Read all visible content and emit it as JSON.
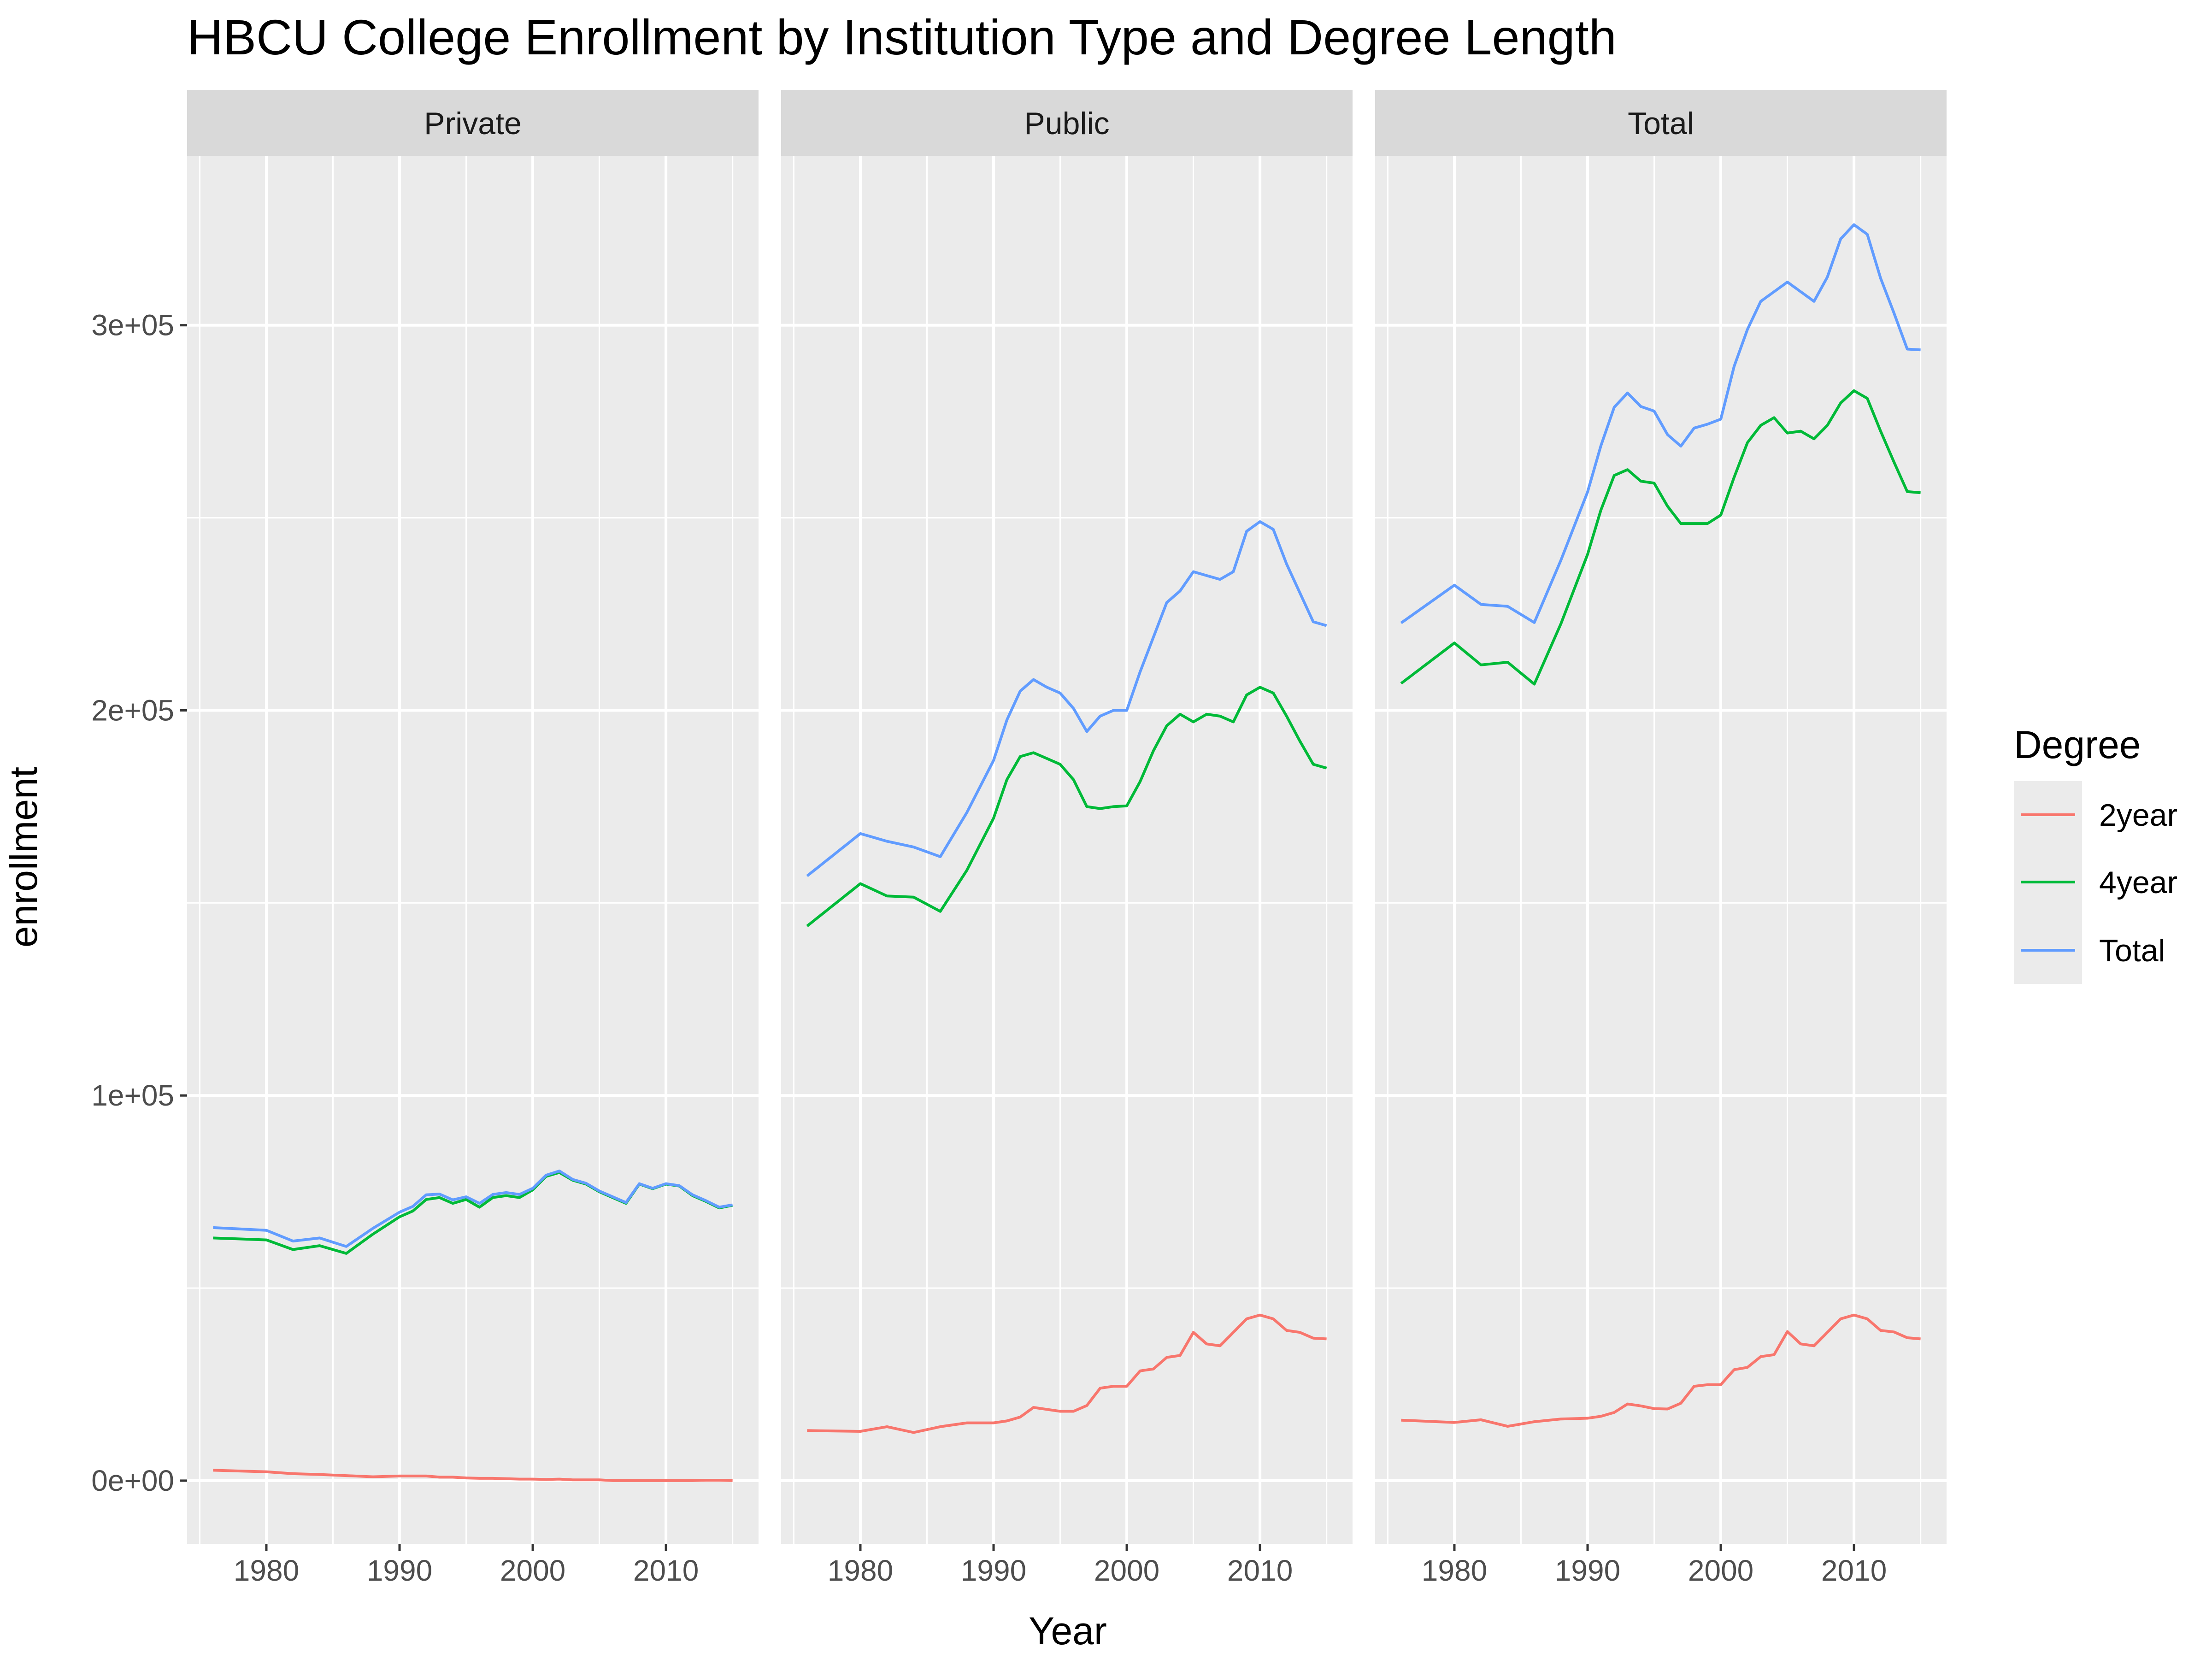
{
  "chart_data": {
    "type": "line",
    "title": "HBCU College Enrollment by Institution Type and Degree Length",
    "xlabel": "Year",
    "ylabel": "enrollment",
    "xlim": [
      1974.05,
      2016.95
    ],
    "ylim": [
      -16400,
      344000
    ],
    "x_ticks": [
      1980,
      1990,
      2000,
      2010
    ],
    "x_tick_labels": [
      "1980",
      "1990",
      "2000",
      "2010"
    ],
    "y_ticks": [
      0,
      100000,
      200000,
      300000
    ],
    "y_tick_labels": [
      "0e+00",
      "1e+05",
      "2e+05",
      "3e+05"
    ],
    "y_minor_ticks": [
      50000,
      150000,
      250000
    ],
    "x_minor_ticks": [
      1975,
      1985,
      1995,
      2005,
      2015
    ],
    "grid": true,
    "legend": {
      "title": "Degree",
      "position": "right",
      "entries": [
        {
          "name": "2year",
          "color": "#F8766D"
        },
        {
          "name": "4year",
          "color": "#00BA38"
        },
        {
          "name": "Total",
          "color": "#619CFF"
        }
      ]
    },
    "facets": [
      {
        "label": "Private",
        "series": [
          {
            "name": "2year",
            "color": "#F8766D",
            "x": [
              1976,
              1980,
              1982,
              1984,
              1986,
              1988,
              1990,
              1991,
              1992,
              1993,
              1994,
              1995,
              1996,
              1997,
              1998,
              1999,
              2000,
              2001,
              2002,
              2003,
              2004,
              2005,
              2006,
              2007,
              2008,
              2009,
              2010,
              2011,
              2012,
              2013,
              2014,
              2015
            ],
            "y": [
              2700,
              2300,
              1800,
              1600,
              1300,
              1000,
              1200,
              1200,
              1200,
              900,
              900,
              700,
              600,
              600,
              500,
              400,
              400,
              300,
              400,
              200,
              200,
              200,
              0,
              0,
              0,
              0,
              0,
              0,
              0,
              100,
              100,
              0
            ]
          },
          {
            "name": "4year",
            "color": "#00BA38",
            "x": [
              1976,
              1980,
              1982,
              1984,
              1986,
              1988,
              1990,
              1991,
              1992,
              1993,
              1994,
              1995,
              1996,
              1997,
              1998,
              1999,
              2000,
              2001,
              2002,
              2003,
              2004,
              2005,
              2006,
              2007,
              2008,
              2009,
              2010,
              2011,
              2012,
              2013,
              2014,
              2015
            ],
            "y": [
              63000,
              62500,
              60000,
              61000,
              59000,
              64000,
              68500,
              70000,
              73000,
              73500,
              72000,
              73000,
              71000,
              73500,
              74000,
              73500,
              75500,
              79000,
              80000,
              78000,
              77000,
              75000,
              73500,
              72000,
              77000,
              75800,
              77000,
              76500,
              74000,
              72500,
              70800,
              71500
            ]
          },
          {
            "name": "Total",
            "color": "#619CFF",
            "x": [
              1976,
              1980,
              1982,
              1984,
              1986,
              1988,
              1990,
              1991,
              1992,
              1993,
              1994,
              1995,
              1996,
              1997,
              1998,
              1999,
              2000,
              2001,
              2002,
              2003,
              2004,
              2005,
              2006,
              2007,
              2008,
              2009,
              2010,
              2011,
              2012,
              2013,
              2014,
              2015
            ],
            "y": [
              65700,
              65000,
              62200,
              63000,
              60800,
              65500,
              69700,
              71200,
              74200,
              74400,
              72900,
              73700,
              72000,
              74300,
              74800,
              74300,
              75900,
              79300,
              80400,
              78200,
              77200,
              75200,
              73700,
              72200,
              77100,
              75900,
              77100,
              76600,
              74200,
              72700,
              71000,
              71600
            ]
          }
        ]
      },
      {
        "label": "Public",
        "series": [
          {
            "name": "2year",
            "color": "#F8766D",
            "x": [
              1976,
              1980,
              1982,
              1984,
              1986,
              1988,
              1990,
              1991,
              1992,
              1993,
              1994,
              1995,
              1996,
              1997,
              1998,
              1999,
              2000,
              2001,
              2002,
              2003,
              2004,
              2005,
              2006,
              2007,
              2008,
              2009,
              2010,
              2011,
              2012,
              2013,
              2014,
              2015
            ],
            "y": [
              13000,
              12800,
              14000,
              12500,
              14000,
              15000,
              15000,
              15500,
              16500,
              19000,
              18500,
              18000,
              18000,
              19500,
              24000,
              24500,
              24500,
              28500,
              29000,
              32000,
              32500,
              38500,
              35500,
              35000,
              38500,
              42000,
              43000,
              42000,
              39000,
              38500,
              37000,
              36800
            ]
          },
          {
            "name": "4year",
            "color": "#00BA38",
            "x": [
              1976,
              1980,
              1982,
              1984,
              1986,
              1988,
              1990,
              1991,
              1992,
              1993,
              1994,
              1995,
              1996,
              1997,
              1998,
              1999,
              2000,
              2001,
              2002,
              2003,
              2004,
              2005,
              2006,
              2007,
              2008,
              2009,
              2010,
              2011,
              2012,
              2013,
              2014,
              2015
            ],
            "y": [
              144000,
              155000,
              151800,
              151500,
              147800,
              158500,
              172000,
              182000,
              188000,
              189000,
              187500,
              186000,
              182000,
              175000,
              174500,
              175000,
              175200,
              181500,
              189500,
              196000,
              199000,
              197000,
              199000,
              198500,
              197000,
              204000,
              206000,
              204500,
              198500,
              192000,
              186000,
              185000
            ]
          },
          {
            "name": "Total",
            "color": "#619CFF",
            "x": [
              1976,
              1980,
              1982,
              1984,
              1986,
              1988,
              1990,
              1991,
              1992,
              1993,
              1994,
              1995,
              1996,
              1997,
              1998,
              1999,
              2000,
              2001,
              2002,
              2003,
              2004,
              2005,
              2006,
              2007,
              2008,
              2009,
              2010,
              2011,
              2012,
              2013,
              2014,
              2015
            ],
            "y": [
              157000,
              168000,
              166000,
              164500,
              162000,
              173500,
              187000,
              197500,
              205000,
              208000,
              206000,
              204500,
              200500,
              194500,
              198500,
              200000,
              200000,
              210000,
              219000,
              228000,
              231000,
              236000,
              235000,
              234000,
              236000,
              246500,
              249000,
              247000,
              238000,
              230500,
              223000,
              222000
            ]
          }
        ]
      },
      {
        "label": "Total",
        "series": [
          {
            "name": "2year",
            "color": "#F8766D",
            "x": [
              1976,
              1980,
              1982,
              1984,
              1986,
              1988,
              1990,
              1991,
              1992,
              1993,
              1994,
              1995,
              1996,
              1997,
              1998,
              1999,
              2000,
              2001,
              2002,
              2003,
              2004,
              2005,
              2006,
              2007,
              2008,
              2009,
              2010,
              2011,
              2012,
              2013,
              2014,
              2015
            ],
            "y": [
              15700,
              15100,
              15800,
              14100,
              15300,
              16000,
              16200,
              16700,
              17700,
              19900,
              19400,
              18700,
              18600,
              20100,
              24500,
              24900,
              24900,
              28800,
              29400,
              32200,
              32700,
              38700,
              35500,
              35000,
              38500,
              42000,
              43000,
              42000,
              39000,
              38600,
              37100,
              36800
            ]
          },
          {
            "name": "4year",
            "color": "#00BA38",
            "x": [
              1976,
              1980,
              1982,
              1984,
              1986,
              1988,
              1990,
              1991,
              1992,
              1993,
              1994,
              1995,
              1996,
              1997,
              1998,
              1999,
              2000,
              2001,
              2002,
              2003,
              2004,
              2005,
              2006,
              2007,
              2008,
              2009,
              2010,
              2011,
              2012,
              2013,
              2014,
              2015
            ],
            "y": [
              207000,
              217500,
              211800,
              212500,
              206800,
              222500,
              240500,
              252000,
              261000,
              262500,
              259500,
              259000,
              253000,
              248500,
              248500,
              248500,
              250700,
              260500,
              269500,
              274000,
              276000,
              272000,
              272500,
              270500,
              274000,
              279800,
              283000,
              281000,
              272500,
              264500,
              256800,
              256500
            ]
          },
          {
            "name": "Total",
            "color": "#619CFF",
            "x": [
              1976,
              1980,
              1982,
              1984,
              1986,
              1988,
              1990,
              1991,
              1992,
              1993,
              1994,
              1995,
              1996,
              1997,
              1998,
              1999,
              2000,
              2001,
              2002,
              2003,
              2004,
              2005,
              2006,
              2007,
              2008,
              2009,
              2010,
              2011,
              2012,
              2013,
              2014,
              2015
            ],
            "y": [
              222700,
              232500,
              227500,
              227000,
              222800,
              239000,
              256700,
              268700,
              278700,
              282400,
              278900,
              277700,
              271600,
              268600,
              273300,
              274300,
              275600,
              289300,
              298900,
              306200,
              308700,
              311200,
              308700,
              306200,
              312500,
              322400,
              326100,
              323600,
              312200,
              303200,
              293800,
              293600
            ]
          }
        ]
      }
    ]
  }
}
